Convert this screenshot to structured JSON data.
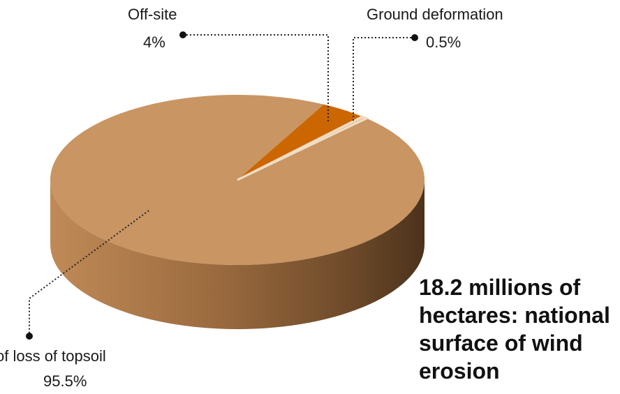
{
  "chart_data": {
    "type": "pie",
    "style": "3d",
    "slices": [
      {
        "label": "of loss of topsoil",
        "value": 95.5,
        "value_label": "95.5%",
        "color": "#C89563"
      },
      {
        "label": "Off-site",
        "value": 4,
        "value_label": "4%",
        "color": "#CC6600"
      },
      {
        "label": "Ground deformation",
        "value": 0.5,
        "value_label": "0.5%",
        "color": "#E8C8A6"
      }
    ],
    "annotation": "18.2 millions of hectares: national surface of wind erosion"
  }
}
